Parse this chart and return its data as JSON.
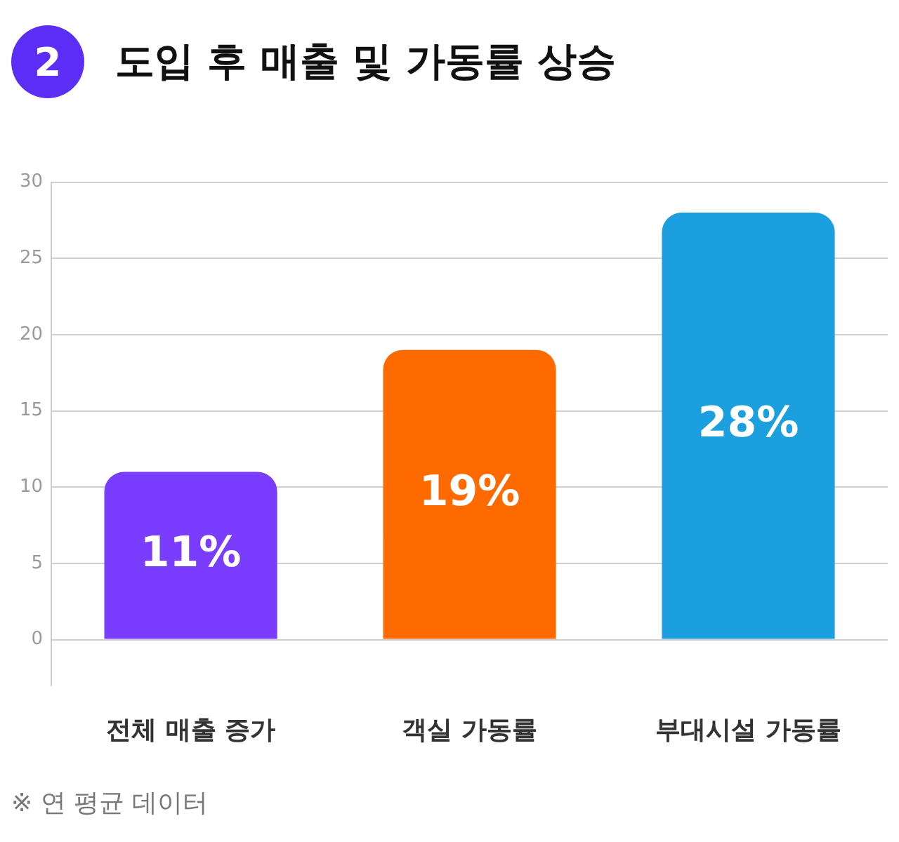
{
  "chart_data": {
    "type": "bar",
    "title": "도입 후 매출 및 가동률 상승",
    "categories": [
      "전체 매출 증가",
      "객실 가동률",
      "부대시설 가동률"
    ],
    "values": [
      11,
      19,
      28
    ],
    "colors": [
      "#7a3cff",
      "#ff6a00",
      "#1c9fdf"
    ],
    "value_labels": [
      "11%",
      "19%",
      "28%"
    ],
    "ylim": [
      -3,
      30
    ],
    "yticks": [
      0,
      5,
      10,
      15,
      20,
      25,
      30
    ],
    "grid": "y",
    "annotations": [
      "2",
      "※ 연 평균 데이터"
    ]
  }
}
